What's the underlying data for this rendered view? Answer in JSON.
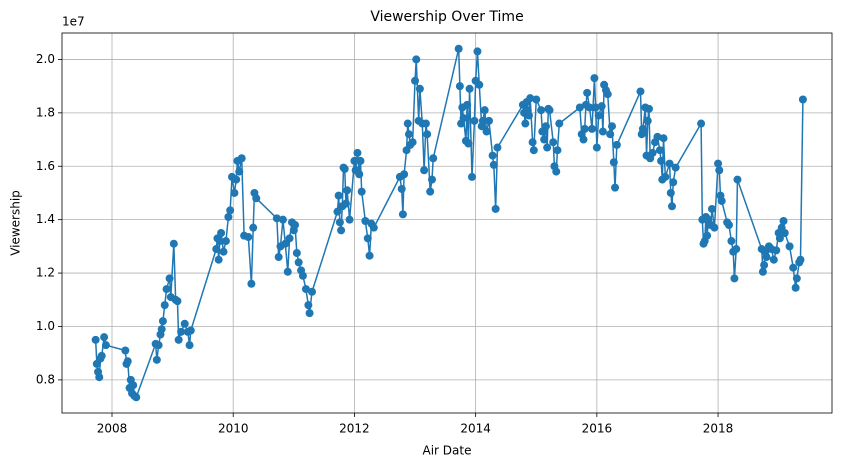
{
  "chart_data": {
    "type": "line",
    "title": "Viewership Over Time",
    "x_label": "Air Date",
    "y_label": "Viewership",
    "y_offset_label": "1e7",
    "color": "#1f77b4",
    "grid": true,
    "markers": true,
    "xlim": [
      2007.175,
      2019.88
    ],
    "xticks": [
      2008,
      2010,
      2012,
      2014,
      2016,
      2018
    ],
    "ylim": [
      6760000.0,
      20990000.0
    ],
    "yticks": [
      {
        "value": 8000000.0,
        "label": "0.8"
      },
      {
        "value": 10000000.0,
        "label": "1.0"
      },
      {
        "value": 12000000.0,
        "label": "1.2"
      },
      {
        "value": 14000000.0,
        "label": "1.4"
      },
      {
        "value": 16000000.0,
        "label": "1.6"
      },
      {
        "value": 18000000.0,
        "label": "1.8"
      },
      {
        "value": 20000000.0,
        "label": "2.0"
      }
    ],
    "x": [
      2007.73,
      2007.75,
      2007.77,
      2007.79,
      2007.81,
      2007.83,
      2007.87,
      2007.9,
      2008.22,
      2008.24,
      2008.26,
      2008.29,
      2008.31,
      2008.33,
      2008.35,
      2008.37,
      2008.4,
      2008.72,
      2008.74,
      2008.77,
      2008.8,
      2008.82,
      2008.84,
      2008.87,
      2008.9,
      2008.95,
      2008.97,
      2009.02,
      2009.05,
      2009.08,
      2009.1,
      2009.14,
      2009.2,
      2009.25,
      2009.28,
      2009.3,
      2009.72,
      2009.74,
      2009.76,
      2009.78,
      2009.8,
      2009.84,
      2009.88,
      2009.92,
      2009.95,
      2009.98,
      2010.02,
      2010.05,
      2010.07,
      2010.1,
      2010.14,
      2010.18,
      2010.25,
      2010.3,
      2010.33,
      2010.35,
      2010.38,
      2010.72,
      2010.75,
      2010.78,
      2010.82,
      2010.86,
      2010.9,
      2010.93,
      2010.97,
      2011.0,
      2011.02,
      2011.05,
      2011.08,
      2011.12,
      2011.15,
      2011.2,
      2011.24,
      2011.26,
      2011.3,
      2011.72,
      2011.74,
      2011.76,
      2011.78,
      2011.8,
      2011.82,
      2011.84,
      2011.86,
      2011.88,
      2011.92,
      2012.0,
      2012.02,
      2012.05,
      2012.08,
      2012.1,
      2012.12,
      2012.18,
      2012.22,
      2012.25,
      2012.28,
      2012.32,
      2012.75,
      2012.78,
      2012.8,
      2012.82,
      2012.86,
      2012.88,
      2012.9,
      2012.92,
      2012.96,
      2013.0,
      2013.02,
      2013.06,
      2013.08,
      2013.12,
      2013.15,
      2013.18,
      2013.2,
      2013.25,
      2013.28,
      2013.3,
      2013.72,
      2013.74,
      2013.76,
      2013.78,
      2013.8,
      2013.84,
      2013.86,
      2013.88,
      2013.9,
      2013.94,
      2013.98,
      2014.0,
      2014.03,
      2014.06,
      2014.1,
      2014.12,
      2014.15,
      2014.18,
      2014.22,
      2014.28,
      2014.3,
      2014.33,
      2014.36,
      2014.78,
      2014.8,
      2014.82,
      2014.84,
      2014.86,
      2014.88,
      2014.9,
      2014.94,
      2014.96,
      2015.0,
      2015.08,
      2015.1,
      2015.13,
      2015.16,
      2015.18,
      2015.2,
      2015.22,
      2015.28,
      2015.3,
      2015.33,
      2015.35,
      2015.38,
      2015.72,
      2015.75,
      2015.78,
      2015.8,
      2015.82,
      2015.84,
      2015.88,
      2015.92,
      2015.96,
      2015.98,
      2016.0,
      2016.03,
      2016.08,
      2016.1,
      2016.12,
      2016.15,
      2016.18,
      2016.22,
      2016.25,
      2016.28,
      2016.3,
      2016.33,
      2016.72,
      2016.74,
      2016.76,
      2016.8,
      2016.82,
      2016.84,
      2016.86,
      2016.88,
      2016.92,
      2016.96,
      2017.0,
      2017.04,
      2017.06,
      2017.08,
      2017.1,
      2017.13,
      2017.2,
      2017.22,
      2017.24,
      2017.26,
      2017.3,
      2017.72,
      2017.74,
      2017.76,
      2017.78,
      2017.8,
      2017.82,
      2017.84,
      2017.88,
      2017.9,
      2017.94,
      2018.0,
      2018.02,
      2018.04,
      2018.06,
      2018.15,
      2018.18,
      2018.22,
      2018.25,
      2018.27,
      2018.3,
      2018.32,
      2018.72,
      2018.74,
      2018.76,
      2018.78,
      2018.8,
      2018.84,
      2018.88,
      2018.92,
      2018.96,
      2019.0,
      2019.02,
      2019.05,
      2019.08,
      2019.1,
      2019.18,
      2019.24,
      2019.28,
      2019.3,
      2019.34,
      2019.36,
      2019.4
    ],
    "values": [
      9500000.0,
      8600000.0,
      8300000.0,
      8100000.0,
      8800000.0,
      8900000.0,
      9600000.0,
      9300000.0,
      9100000.0,
      8600000.0,
      8700000.0,
      7700000.0,
      8000000.0,
      7500000.0,
      7800000.0,
      7400000.0,
      7350000.0,
      9350000.0,
      8750000.0,
      9300000.0,
      9700000.0,
      9900000.0,
      10200000.0,
      10800000.0,
      11400000.0,
      11800000.0,
      11100000.0,
      13100000.0,
      11000000.0,
      10950000.0,
      9500000.0,
      9800000.0,
      10100000.0,
      9800000.0,
      9300000.0,
      9850000.0,
      12900000.0,
      13300000.0,
      12500000.0,
      13200000.0,
      13500000.0,
      12800000.0,
      13200000.0,
      14100000.0,
      14350000.0,
      15600000.0,
      15000000.0,
      15500000.0,
      16200000.0,
      15800000.0,
      16300000.0,
      13400000.0,
      13350000.0,
      11600000.0,
      13700000.0,
      15000000.0,
      14800000.0,
      14050000.0,
      12600000.0,
      13000000.0,
      14000000.0,
      13100000.0,
      12050000.0,
      13300000.0,
      13900000.0,
      13600000.0,
      13800000.0,
      12750000.0,
      12400000.0,
      12100000.0,
      11900000.0,
      11400000.0,
      10800000.0,
      10500000.0,
      11300000.0,
      14300000.0,
      14900000.0,
      13900000.0,
      13600000.0,
      14500000.0,
      15950000.0,
      15900000.0,
      14600000.0,
      15100000.0,
      14000000.0,
      16200000.0,
      15850000.0,
      16500000.0,
      15700000.0,
      16200000.0,
      15050000.0,
      13950000.0,
      13300000.0,
      12650000.0,
      13850000.0,
      13700000.0,
      15600000.0,
      15150000.0,
      14200000.0,
      15700000.0,
      16600000.0,
      17600000.0,
      17200000.0,
      16800000.0,
      16900000.0,
      19200000.0,
      20000000.0,
      17700000.0,
      18900000.0,
      17600000.0,
      15850000.0,
      17600000.0,
      17200000.0,
      15050000.0,
      15500000.0,
      16300000.0,
      20400000.0,
      19000000.0,
      17600000.0,
      18200000.0,
      17800000.0,
      16950000.0,
      18300000.0,
      16850000.0,
      18900000.0,
      15600000.0,
      17700000.0,
      19200000.0,
      20300000.0,
      19050000.0,
      17500000.0,
      17700000.0,
      18100000.0,
      17300000.0,
      17700000.0,
      16400000.0,
      16050000.0,
      14400000.0,
      16700000.0,
      18300000.0,
      18000000.0,
      17600000.0,
      18400000.0,
      18100000.0,
      17900000.0,
      18550000.0,
      16900000.0,
      16600000.0,
      18500000.0,
      18100000.0,
      17300000.0,
      17000000.0,
      17500000.0,
      16700000.0,
      18150000.0,
      18100000.0,
      16900000.0,
      16000000.0,
      15800000.0,
      16600000.0,
      17600000.0,
      18200000.0,
      17200000.0,
      17000000.0,
      17400000.0,
      18300000.0,
      18750000.0,
      18200000.0,
      17400000.0,
      19300000.0,
      18200000.0,
      16700000.0,
      17900000.0,
      18250000.0,
      17300000.0,
      19050000.0,
      18850000.0,
      18700000.0,
      17200000.0,
      17500000.0,
      16150000.0,
      15200000.0,
      16800000.0,
      18800000.0,
      17200000.0,
      17400000.0,
      18200000.0,
      16400000.0,
      17700000.0,
      18150000.0,
      16300000.0,
      16500000.0,
      16900000.0,
      17100000.0,
      16600000.0,
      16200000.0,
      15500000.0,
      17050000.0,
      15600000.0,
      16100000.0,
      15000000.0,
      14500000.0,
      15400000.0,
      15950000.0,
      17600000.0,
      14000000.0,
      13100000.0,
      13200000.0,
      14100000.0,
      13400000.0,
      14000000.0,
      13800000.0,
      14400000.0,
      13700000.0,
      16100000.0,
      15850000.0,
      14900000.0,
      14700000.0,
      13900000.0,
      13800000.0,
      13200000.0,
      12800000.0,
      11800000.0,
      12900000.0,
      15500000.0,
      12900000.0,
      12050000.0,
      12300000.0,
      12800000.0,
      12600000.0,
      13000000.0,
      12900000.0,
      12500000.0,
      12850000.0,
      13500000.0,
      13300000.0,
      13700000.0,
      13950000.0,
      13500000.0,
      13000000.0,
      12200000.0,
      11450000.0,
      11800000.0,
      12400000.0,
      12500000.0,
      18500000.0
    ]
  }
}
